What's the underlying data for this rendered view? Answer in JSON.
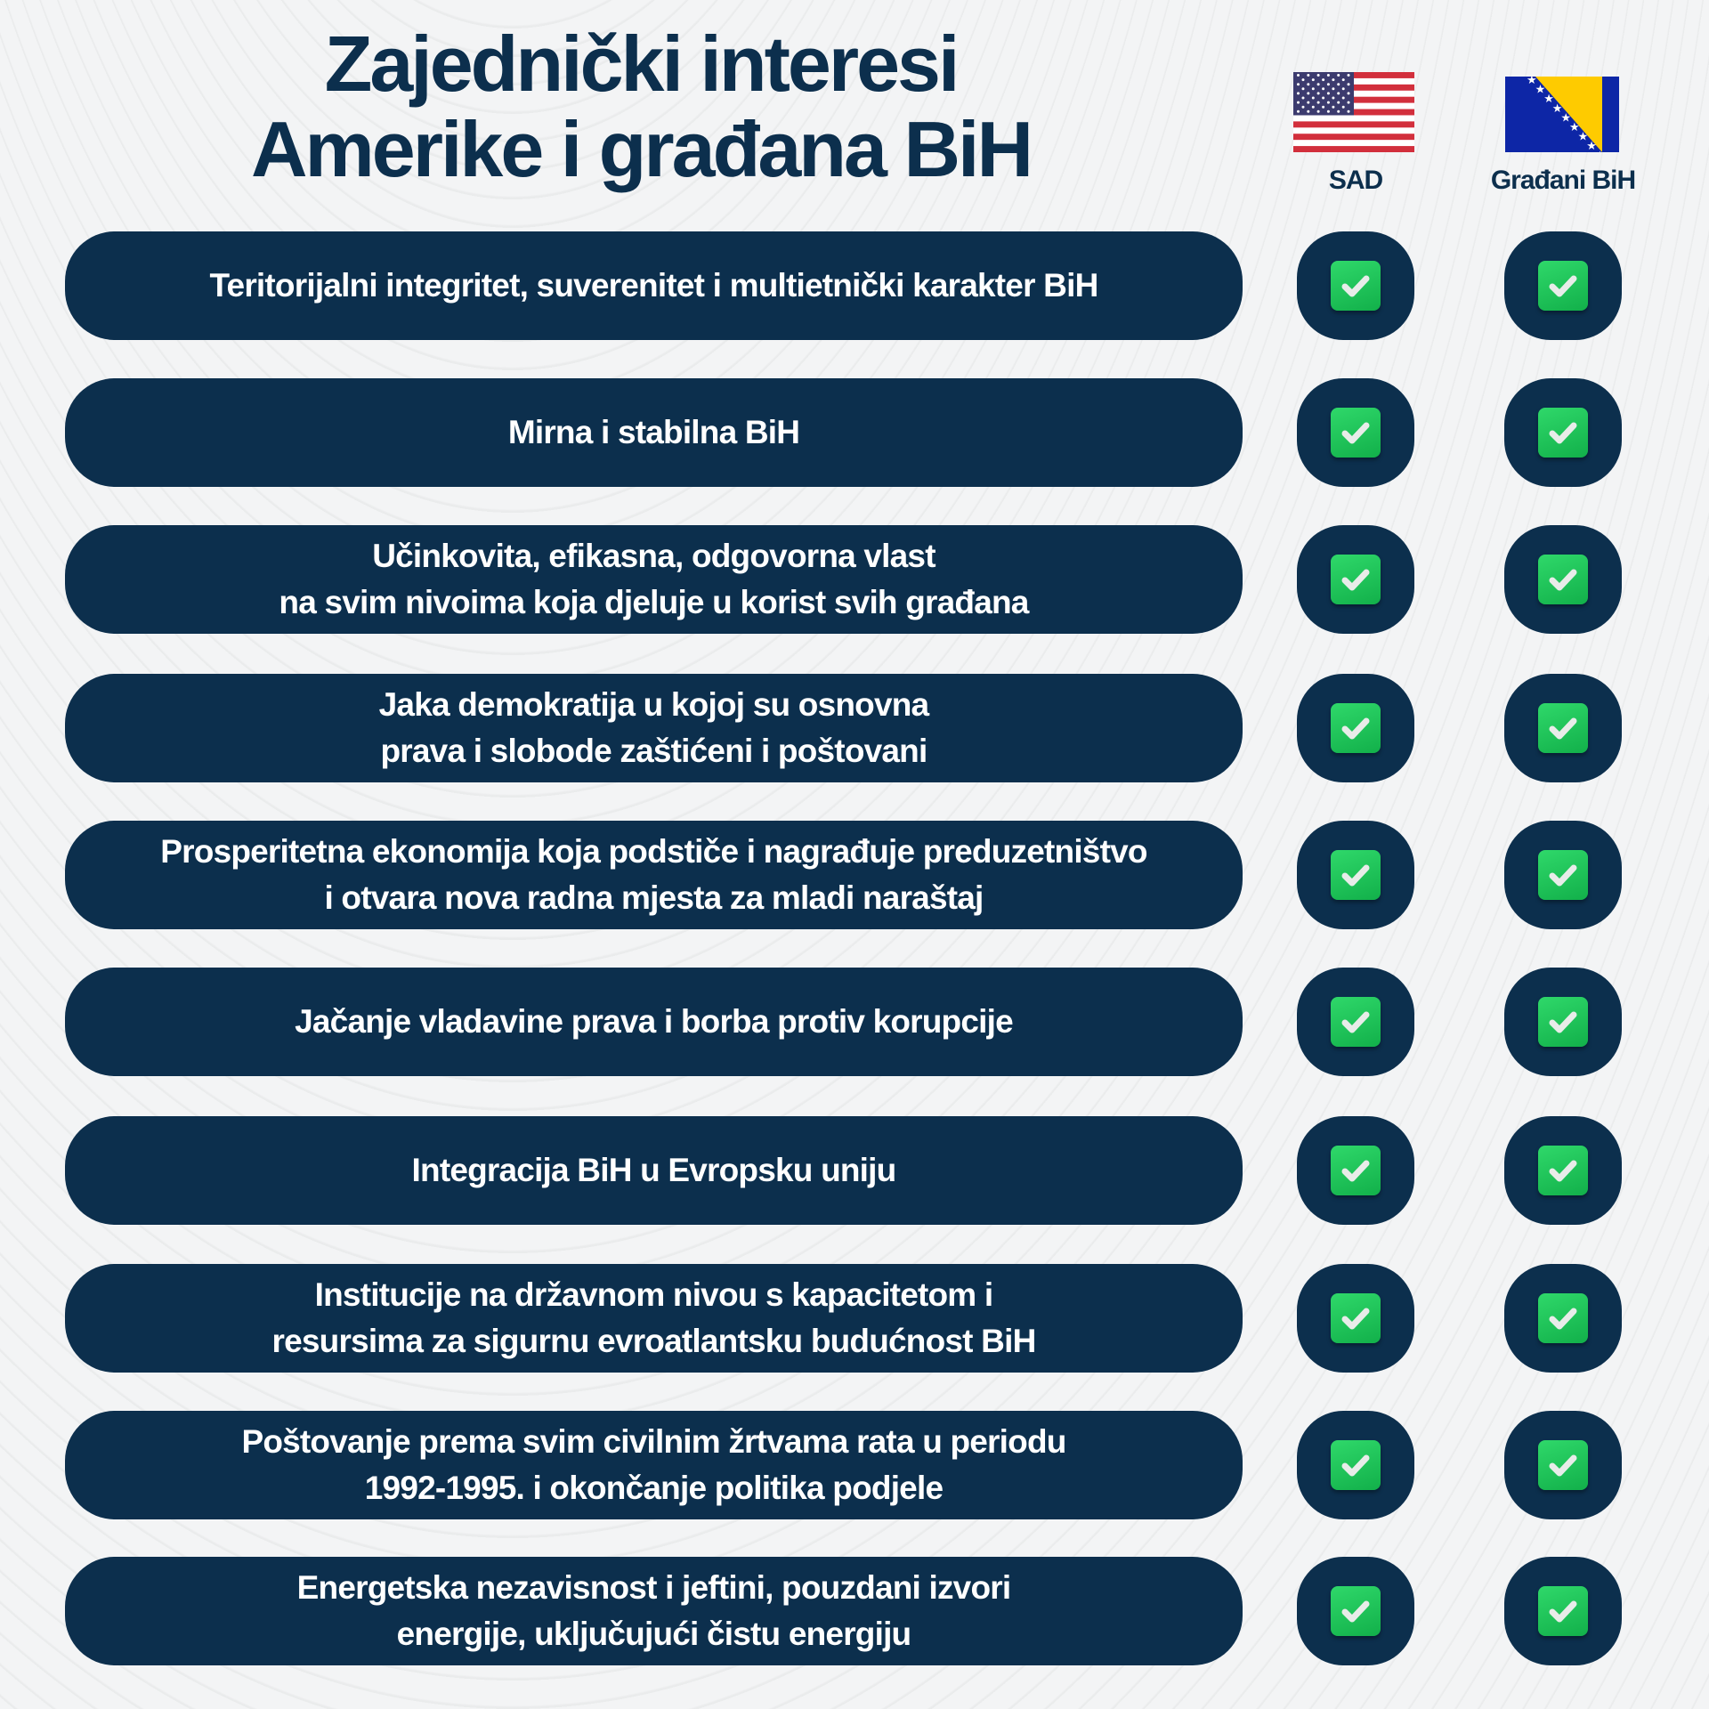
{
  "header": {
    "title_line1": "Zajednički interesi",
    "title_line2": "Amerike i građana BiH"
  },
  "columns": [
    {
      "label": "SAD",
      "flag": "us-flag-icon"
    },
    {
      "label": "Građani BiH",
      "flag": "bih-flag-icon"
    }
  ],
  "colors": {
    "navy": "#0c2f4d",
    "check_green": "#1fc65a",
    "background": "#f3f4f5"
  },
  "rows": [
    {
      "text": "Teritorijalni integritet, suverenitet i multietnički karakter BiH",
      "sad": true,
      "bih": true
    },
    {
      "text": "Mirna i stabilna BiH",
      "sad": true,
      "bih": true
    },
    {
      "text": "Učinkovita, efikasna, odgovorna vlast\nna svim nivoima koja djeluje u korist svih građana",
      "sad": true,
      "bih": true
    },
    {
      "text": "Jaka demokratija u kojoj su osnovna\nprava i slobode zaštićeni i poštovani",
      "sad": true,
      "bih": true
    },
    {
      "text": "Prosperitetna ekonomija koja podstiče i nagrađuje preduzetništvo\ni otvara nova radna mjesta za mladi naraštaj",
      "sad": true,
      "bih": true
    },
    {
      "text": "Jačanje vladavine prava i borba protiv korupcije",
      "sad": true,
      "bih": true
    },
    {
      "text": "Integracija BiH u Evropsku uniju",
      "sad": true,
      "bih": true
    },
    {
      "text": "Institucije na državnom nivou s kapacitetom i\nresursima za sigurnu evroatlantsku budućnost BiH",
      "sad": true,
      "bih": true
    },
    {
      "text": "Poštovanje prema svim civilnim žrtvama rata u periodu\n1992-1995. i okončanje politika podjele",
      "sad": true,
      "bih": true
    },
    {
      "text": "Energetska nezavisnost i jeftini, pouzdani izvori\nenergije, uključujući čistu energiju",
      "sad": true,
      "bih": true
    }
  ]
}
